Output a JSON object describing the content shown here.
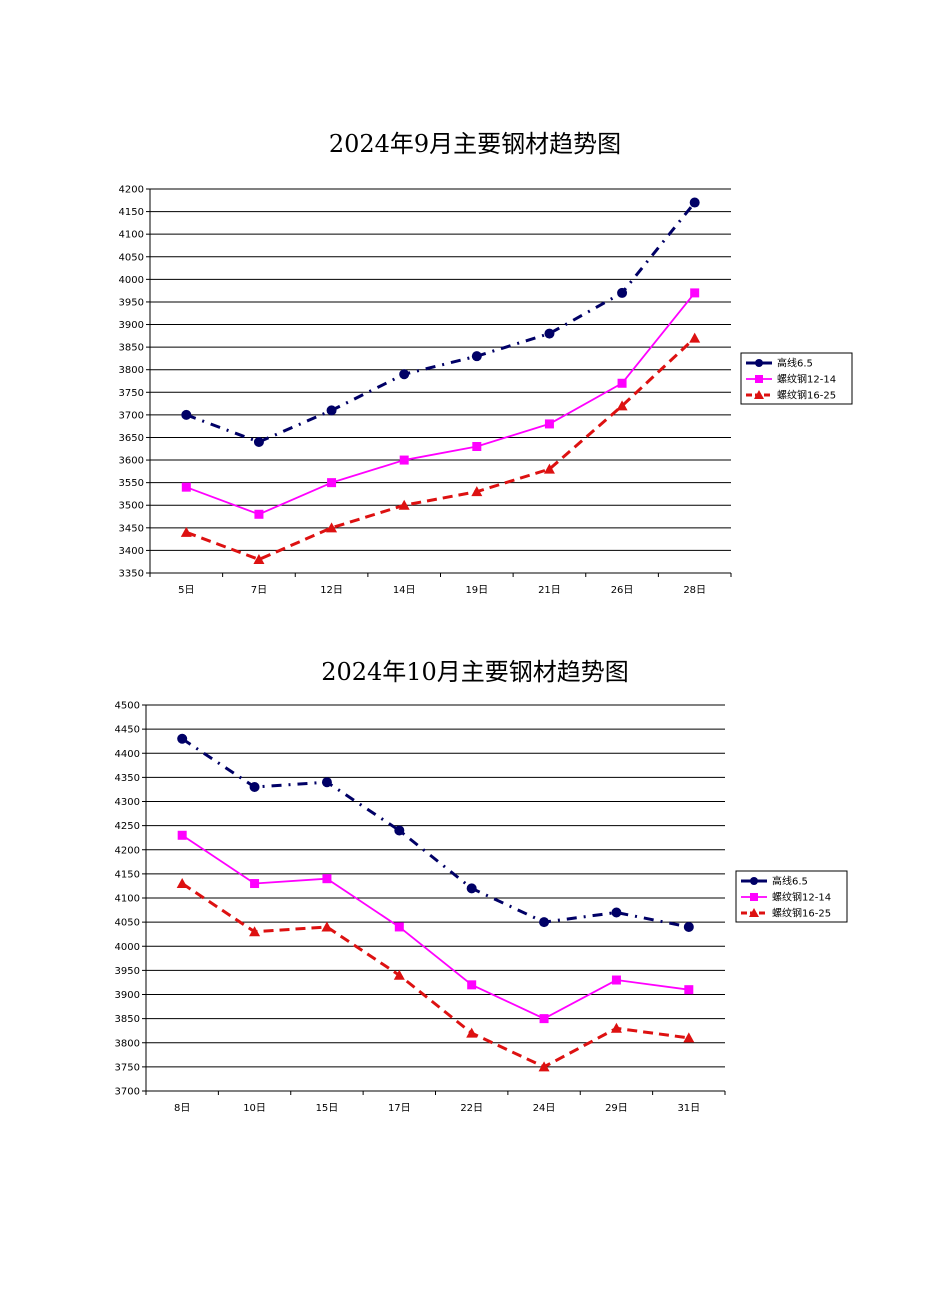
{
  "chart_data": [
    {
      "type": "line",
      "title": "2024年9月主要钢材趋势图",
      "categories": [
        "5日",
        "7日",
        "12日",
        "14日",
        "19日",
        "21日",
        "26日",
        "28日"
      ],
      "ylim": [
        3350,
        4200
      ],
      "ystep": 50,
      "grid": true,
      "legend_position": "right",
      "series": [
        {
          "name": "高线6.5",
          "values": [
            3700,
            3640,
            3710,
            3790,
            3830,
            3880,
            3970,
            4170
          ],
          "color": "#000066",
          "marker": "circle",
          "dash": "dashdot"
        },
        {
          "name": "螺纹钢12-14",
          "values": [
            3540,
            3480,
            3550,
            3600,
            3630,
            3680,
            3770,
            3970
          ],
          "color": "#ff00ff",
          "marker": "square",
          "dash": "solid"
        },
        {
          "name": "螺纹钢16-25",
          "values": [
            3440,
            3380,
            3450,
            3500,
            3530,
            3580,
            3720,
            3870
          ],
          "color": "#dd1111",
          "marker": "triangle",
          "dash": "dashed"
        }
      ]
    },
    {
      "type": "line",
      "title": "2024年10月主要钢材趋势图",
      "categories": [
        "8日",
        "10日",
        "15日",
        "17日",
        "22日",
        "24日",
        "29日",
        "31日"
      ],
      "ylim": [
        3700,
        4500
      ],
      "ystep": 50,
      "grid": true,
      "legend_position": "right",
      "series": [
        {
          "name": "高线6.5",
          "values": [
            4430,
            4330,
            4340,
            4240,
            4120,
            4050,
            4070,
            4040
          ],
          "color": "#000066",
          "marker": "circle",
          "dash": "dashdot"
        },
        {
          "name": "螺纹钢12-14",
          "values": [
            4230,
            4130,
            4140,
            4040,
            3920,
            3850,
            3930,
            3910
          ],
          "color": "#ff00ff",
          "marker": "square",
          "dash": "solid"
        },
        {
          "name": "螺纹钢16-25",
          "values": [
            4130,
            4030,
            4040,
            3940,
            3820,
            3750,
            3830,
            3810
          ],
          "color": "#dd1111",
          "marker": "triangle",
          "dash": "dashed"
        }
      ]
    }
  ]
}
